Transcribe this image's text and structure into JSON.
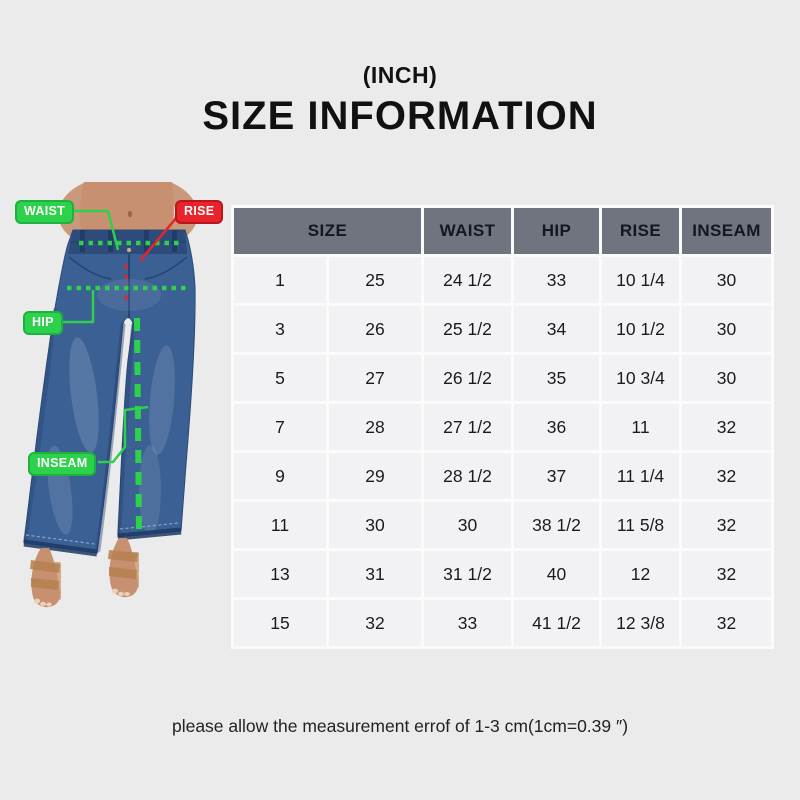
{
  "title": {
    "unit": "(INCH)",
    "main": "SIZE INFORMATION"
  },
  "diagram": {
    "waist_label": "WAIST",
    "rise_label": "RISE",
    "hip_label": "HIP",
    "inseam_label": "INSEAM"
  },
  "table": {
    "headers": [
      {
        "label": "SIZE",
        "colspan": 2
      },
      {
        "label": "WAIST",
        "colspan": 1
      },
      {
        "label": "HIP",
        "colspan": 1
      },
      {
        "label": "RISE",
        "colspan": 1
      },
      {
        "label": "INSEAM",
        "colspan": 1
      }
    ],
    "rows": [
      [
        "1",
        "25",
        "24 1/2",
        "33",
        "10 1/4",
        "30"
      ],
      [
        "3",
        "26",
        "25 1/2",
        "34",
        "10 1/2",
        "30"
      ],
      [
        "5",
        "27",
        "26 1/2",
        "35",
        "10 3/4",
        "30"
      ],
      [
        "7",
        "28",
        "27 1/2",
        "36",
        "11",
        "32"
      ],
      [
        "9",
        "29",
        "28 1/2",
        "37",
        "11 1/4",
        "32"
      ],
      [
        "11",
        "30",
        "30",
        "38 1/2",
        "11 5/8",
        "32"
      ],
      [
        "13",
        "31",
        "31 1/2",
        "40",
        "12",
        "32"
      ],
      [
        "15",
        "32",
        "33",
        "41 1/2",
        "12 3/8",
        "32"
      ]
    ]
  },
  "note": "please allow the measurement errof of 1-3 cm(1cm=0.39 ″)",
  "colors": {
    "page_bg": "#ebebeb",
    "title_text": "#111111",
    "table_header_bg": "#70747e",
    "table_header_text": "#16161f",
    "cell_bg": "#f2f2f4",
    "cell_text": "#1a1a23",
    "separator": "#fbfbfb",
    "note_text": "#222222",
    "green": "#2ed14b",
    "green_dark": "#1bb23e",
    "red": "#e8232b",
    "red_dark": "#b8161d",
    "denim": "#3b6094",
    "denim_dark": "#2c4a78",
    "denim_shadow": "#1d3a66",
    "denim_light": "#a8bcd8",
    "skin": "#c79070",
    "skin_dark": "#9c6648",
    "sandal": "#b5804f",
    "sandal_light": "#cda57e"
  }
}
